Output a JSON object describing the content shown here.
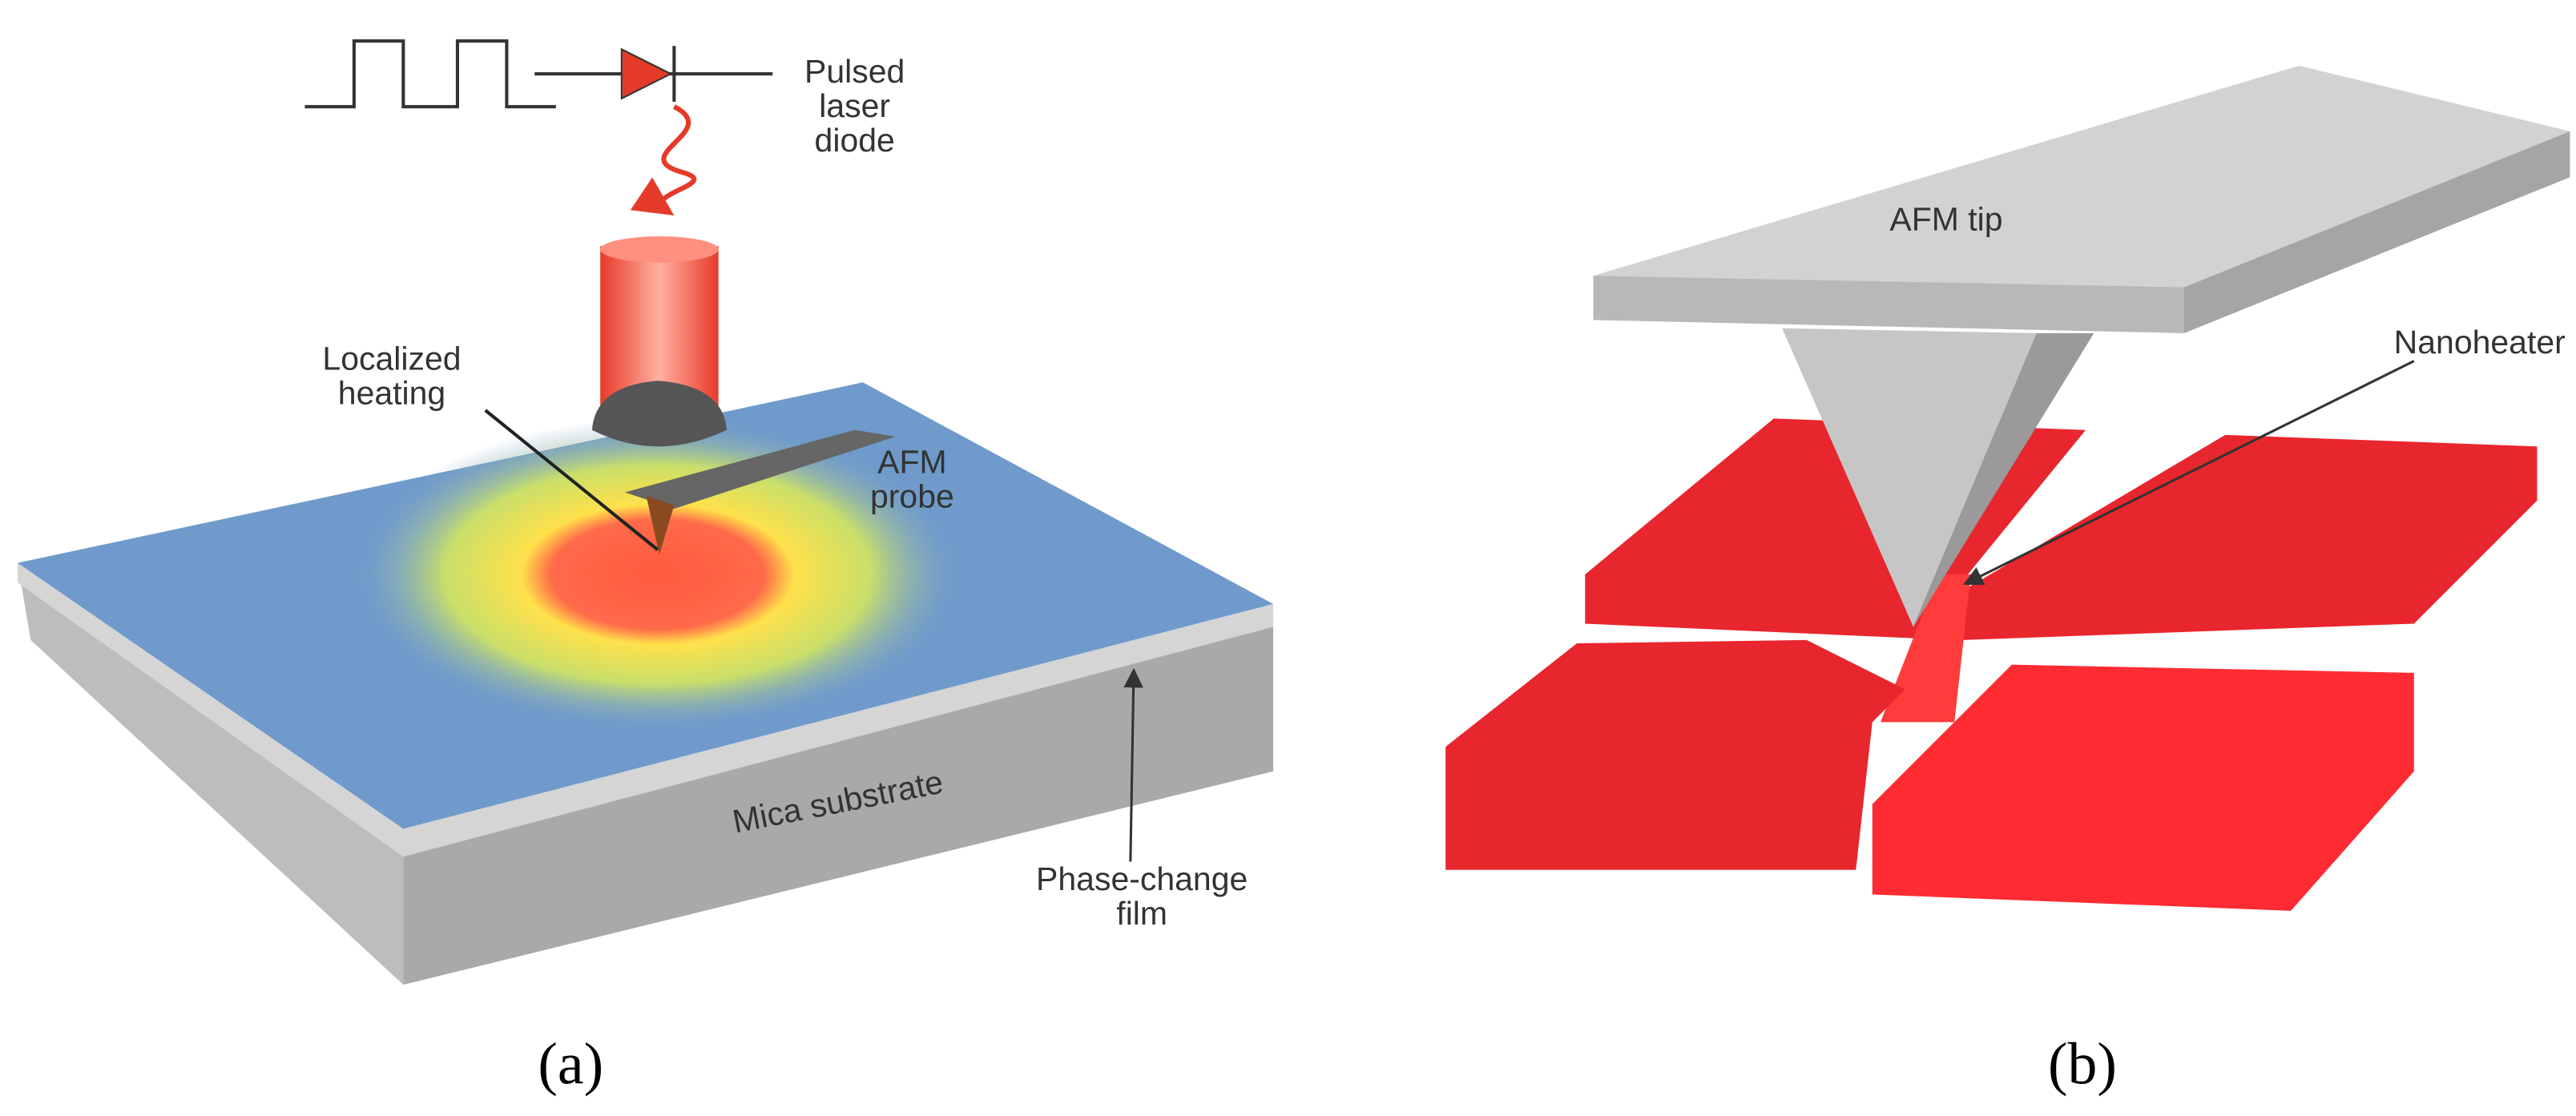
{
  "panels": [
    {
      "caption": "(a)",
      "labels": [
        {
          "lines": [
            "Pulsed",
            "laser",
            "diode"
          ]
        },
        {
          "lines": [
            "Localized",
            "heating"
          ]
        },
        {
          "lines": [
            "AFM",
            "probe"
          ]
        },
        {
          "lines": [
            "Mica substrate"
          ]
        },
        {
          "lines": [
            "Phase-change",
            "film"
          ]
        }
      ]
    },
    {
      "caption": "(b)",
      "labels": [
        {
          "lines": [
            "AFM tip"
          ]
        },
        {
          "lines": [
            "Nanoheater"
          ]
        }
      ]
    }
  ]
}
